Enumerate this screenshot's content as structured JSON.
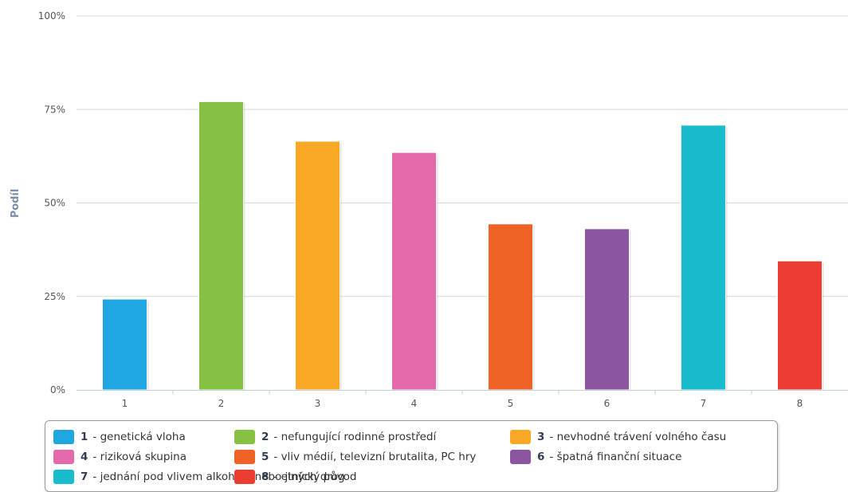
{
  "chart_data": {
    "type": "bar",
    "categories": [
      "1",
      "2",
      "3",
      "4",
      "5",
      "6",
      "7",
      "8"
    ],
    "values": [
      24.3,
      77.1,
      66.5,
      63.5,
      44.4,
      43.1,
      70.8,
      34.5
    ],
    "colors": [
      "#1ea7e1",
      "#86c143",
      "#f9a825",
      "#e46aab",
      "#ee6325",
      "#8c55a0",
      "#19bccc",
      "#ec3d33"
    ],
    "ylabel": "Podíl",
    "ylim": [
      0,
      100
    ],
    "yticks": [
      "0%",
      "25%",
      "50%",
      "75%",
      "100%"
    ],
    "ytick_values": [
      0,
      25,
      50,
      75,
      100
    ],
    "grid": true,
    "legend_position": "bottom"
  },
  "legend": {
    "items": [
      {
        "num": "1",
        "label": "- genetická vloha"
      },
      {
        "num": "2",
        "label": "- nefungující rodinné prostředí"
      },
      {
        "num": "3",
        "label": "- nevhodné trávení volného času"
      },
      {
        "num": "4",
        "label": "- riziková skupina"
      },
      {
        "num": "5",
        "label": "- vliv médií, televizní brutalita, PC hry"
      },
      {
        "num": "6",
        "label": "- špatná finanční situace"
      },
      {
        "num": "7",
        "label": "- jednání pod vlivem alkoholu nebo jiných drog"
      },
      {
        "num": "8",
        "label": "- etnický původ"
      }
    ]
  }
}
